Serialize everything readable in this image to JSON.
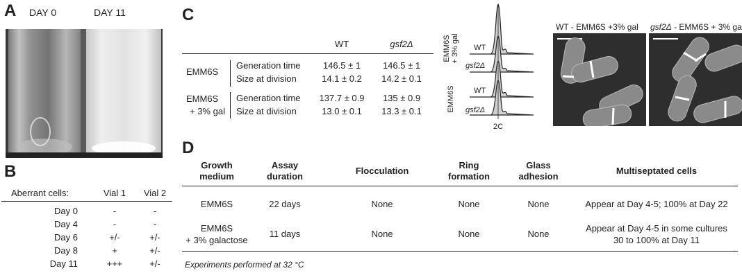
{
  "panelA": {
    "letter": "A",
    "day0": "DAY 0",
    "day11": "DAY 11"
  },
  "panelB": {
    "letter": "B",
    "header": [
      "Aberrant cells:",
      "Vial 1",
      "Vial 2"
    ],
    "rows": [
      {
        "day": "Day 0",
        "v1": "-",
        "v2": "-"
      },
      {
        "day": "Day 4",
        "v1": "-",
        "v2": "-"
      },
      {
        "day": "Day 6",
        "v1": "+/-",
        "v2": "+/-"
      },
      {
        "day": "Day 8",
        "v1": "+",
        "v2": "+/-"
      },
      {
        "day": "Day 11",
        "v1": "+++",
        "v2": "+/-"
      }
    ]
  },
  "panelC": {
    "letter": "C",
    "col_wt": "WT",
    "col_gsf": "gsf2Δ",
    "groups": [
      {
        "medium": [
          "EMM6S"
        ],
        "rows": [
          {
            "param": "Generation time",
            "wt": "146.5 ± 1",
            "gsf": "146.5 ± 1"
          },
          {
            "param": "Size at division",
            "wt": "14.1 ± 0.2",
            "gsf": "14.2 ± 0.1"
          }
        ]
      },
      {
        "medium": [
          "EMM6S",
          "+ 3% gal"
        ],
        "rows": [
          {
            "param": "Generation time",
            "wt": "137.7 ± 0.9",
            "gsf": "135 ± 0.9"
          },
          {
            "param": "Size at division",
            "wt": "13.0 ± 0.1",
            "gsf": "13.3 ± 0.1"
          }
        ]
      }
    ],
    "flow": {
      "group1_label": [
        "EMM6S",
        "+ 3% gal"
      ],
      "group2_label": "EMM6S",
      "trace_labels": [
        "WT",
        "gsf2Δ",
        "WT",
        "gsf2Δ"
      ],
      "x_label": "2C"
    },
    "micro": {
      "left_title": "WT - EMM6S +3% gal",
      "right_title_gene": "gsf2Δ",
      "right_title_rest": " - EMM6S + 3% gal"
    }
  },
  "panelD": {
    "letter": "D",
    "headers": [
      [
        "Growth",
        "medium"
      ],
      [
        "Assay",
        "duration"
      ],
      [
        "Flocculation"
      ],
      [
        "Ring",
        "formation"
      ],
      [
        "Glass",
        "adhesion"
      ],
      [
        "Multiseptated cells"
      ]
    ],
    "rows": [
      {
        "medium": [
          "EMM6S"
        ],
        "duration": "22 days",
        "floc": "None",
        "ring": "None",
        "glass": "None",
        "multi": [
          "Appear at Day 4-5; 100% at Day 22"
        ]
      },
      {
        "medium": [
          "EMM6S",
          "+ 3% galactose"
        ],
        "duration": "11 days",
        "floc": "None",
        "ring": "None",
        "glass": "None",
        "multi": [
          "Appear at Day 4-5 in some cultures",
          "30 to 100% at Day 11"
        ]
      }
    ],
    "footnote": "Experiments performed at 32 °C"
  }
}
